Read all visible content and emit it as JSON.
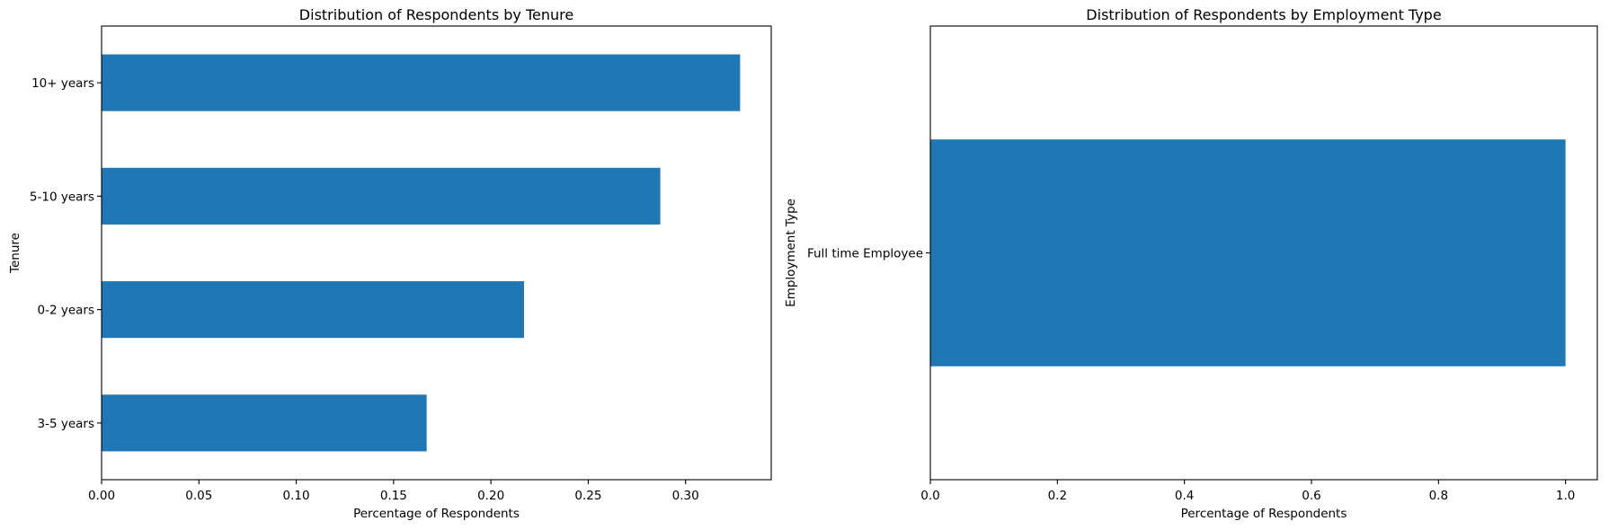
{
  "chart_data": [
    {
      "type": "bar",
      "orientation": "horizontal",
      "title": "Distribution of Respondents by Tenure",
      "xlabel": "Percentage of Respondents",
      "ylabel": "Tenure",
      "categories": [
        "3-5 years",
        "0-2 years",
        "5-10 years",
        "10+ years"
      ],
      "values": [
        0.167,
        0.217,
        0.287,
        0.328
      ],
      "xlim": [
        0,
        0.344
      ],
      "xticks": [
        0.0,
        0.05,
        0.1,
        0.15,
        0.2,
        0.25,
        0.3
      ],
      "xtick_labels": [
        "0.00",
        "0.05",
        "0.10",
        "0.15",
        "0.20",
        "0.25",
        "0.30"
      ],
      "color": "#1f77b4",
      "grid": false
    },
    {
      "type": "bar",
      "orientation": "horizontal",
      "title": "Distribution of Respondents by Employment Type",
      "xlabel": "Percentage of Respondents",
      "ylabel": "Employment Type",
      "categories": [
        "Full time Employee"
      ],
      "values": [
        1.0
      ],
      "xlim": [
        0,
        1.05
      ],
      "xticks": [
        0.0,
        0.2,
        0.4,
        0.6,
        0.8,
        1.0
      ],
      "xtick_labels": [
        "0.0",
        "0.2",
        "0.4",
        "0.6",
        "0.8",
        "1.0"
      ],
      "color": "#1f77b4",
      "grid": false
    }
  ]
}
